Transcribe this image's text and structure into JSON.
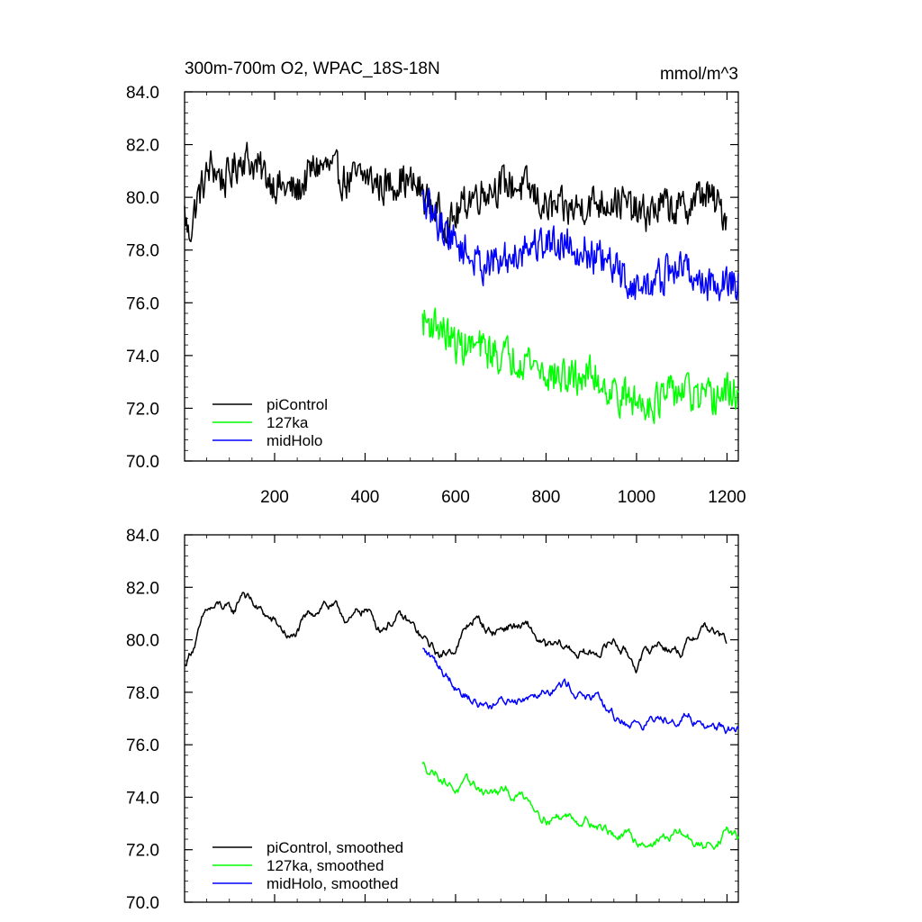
{
  "chart_data": [
    {
      "type": "line",
      "title": "300m-700m O2, WPAC_18S-18N",
      "units": "mmol/m^3",
      "xlim": [
        1,
        1225
      ],
      "ylim": [
        70,
        84
      ],
      "x_ticks": [
        200,
        400,
        600,
        800,
        1000,
        1200
      ],
      "x_tick_labels": [
        "200",
        "400",
        "600",
        "800",
        "1000",
        "1200"
      ],
      "y_ticks": [
        70,
        72,
        74,
        76,
        78,
        80,
        82,
        84
      ],
      "y_tick_labels": [
        "70.0",
        "72.0",
        "74.0",
        "76.0",
        "78.0",
        "80.0",
        "82.0",
        "84.0"
      ],
      "legend_position": "bottom-left",
      "series": [
        {
          "name": "piControl",
          "color": "#000000",
          "x_start": 1,
          "x_end": 1200,
          "anchors": [
            [
              1,
              79.4
            ],
            [
              10,
              78.5
            ],
            [
              30,
              80.0
            ],
            [
              60,
              81.2
            ],
            [
              90,
              80.6
            ],
            [
              130,
              81.6
            ],
            [
              170,
              81.0
            ],
            [
              210,
              80.4
            ],
            [
              250,
              80.2
            ],
            [
              290,
              81.2
            ],
            [
              320,
              81.1
            ],
            [
              360,
              80.6
            ],
            [
              400,
              80.8
            ],
            [
              440,
              80.4
            ],
            [
              480,
              80.7
            ],
            [
              520,
              80.3
            ],
            [
              560,
              79.4
            ],
            [
              590,
              79.0
            ],
            [
              630,
              80.0
            ],
            [
              680,
              80.4
            ],
            [
              720,
              80.5
            ],
            [
              760,
              80.3
            ],
            [
              800,
              79.6
            ],
            [
              850,
              79.5
            ],
            [
              900,
              79.8
            ],
            [
              960,
              79.9
            ],
            [
              1010,
              79.3
            ],
            [
              1060,
              79.7
            ],
            [
              1100,
              79.5
            ],
            [
              1150,
              80.2
            ],
            [
              1200,
              79.3
            ]
          ],
          "noise": 0.85
        },
        {
          "name": "127ka",
          "color": "#00ff00",
          "x_start": 527,
          "x_end": 1225,
          "anchors": [
            [
              527,
              75.3
            ],
            [
              560,
              75.2
            ],
            [
              600,
              74.4
            ],
            [
              650,
              74.3
            ],
            [
              700,
              74.0
            ],
            [
              760,
              73.9
            ],
            [
              800,
              73.3
            ],
            [
              850,
              73.1
            ],
            [
              900,
              73.3
            ],
            [
              950,
              72.6
            ],
            [
              1000,
              72.2
            ],
            [
              1050,
              72.3
            ],
            [
              1100,
              72.7
            ],
            [
              1150,
              72.2
            ],
            [
              1200,
              72.6
            ],
            [
              1225,
              72.6
            ]
          ],
          "noise": 0.85
        },
        {
          "name": "midHolo",
          "color": "#0000ff",
          "x_start": 527,
          "x_end": 1225,
          "anchors": [
            [
              527,
              79.8
            ],
            [
              560,
              79.1
            ],
            [
              600,
              78.3
            ],
            [
              650,
              77.5
            ],
            [
              700,
              77.5
            ],
            [
              760,
              78.2
            ],
            [
              800,
              78.3
            ],
            [
              850,
              78.3
            ],
            [
              900,
              77.8
            ],
            [
              950,
              77.3
            ],
            [
              1000,
              76.5
            ],
            [
              1050,
              76.9
            ],
            [
              1100,
              77.4
            ],
            [
              1150,
              76.7
            ],
            [
              1200,
              76.8
            ],
            [
              1225,
              76.8
            ]
          ],
          "noise": 0.85
        }
      ],
      "legend_entries": [
        "piControl",
        "127ka",
        "midHolo"
      ]
    },
    {
      "type": "line",
      "title": "",
      "xlim": [
        1,
        1225
      ],
      "ylim": [
        70,
        84
      ],
      "x_ticks": [
        200,
        400,
        600,
        800,
        1000,
        1200
      ],
      "y_ticks": [
        70,
        72,
        74,
        76,
        78,
        80,
        82,
        84
      ],
      "y_tick_labels": [
        "70.0",
        "72.0",
        "74.0",
        "76.0",
        "78.0",
        "80.0",
        "82.0",
        "84.0"
      ],
      "legend_position": "bottom-left",
      "series": [
        {
          "name": "piControl, smoothed",
          "color": "#000000",
          "x_start": 1,
          "x_end": 1200,
          "anchors": [
            [
              1,
              79.0
            ],
            [
              20,
              79.8
            ],
            [
              50,
              81.0
            ],
            [
              80,
              81.2
            ],
            [
              110,
              80.9
            ],
            [
              130,
              81.9
            ],
            [
              160,
              81.2
            ],
            [
              200,
              80.6
            ],
            [
              240,
              80.0
            ],
            [
              280,
              80.9
            ],
            [
              310,
              81.5
            ],
            [
              340,
              81.0
            ],
            [
              370,
              80.7
            ],
            [
              400,
              81.2
            ],
            [
              430,
              80.5
            ],
            [
              470,
              80.9
            ],
            [
              500,
              80.5
            ],
            [
              530,
              79.9
            ],
            [
              570,
              79.3
            ],
            [
              600,
              79.8
            ],
            [
              640,
              80.8
            ],
            [
              680,
              80.3
            ],
            [
              720,
              80.6
            ],
            [
              760,
              80.4
            ],
            [
              800,
              79.6
            ],
            [
              850,
              79.6
            ],
            [
              900,
              79.4
            ],
            [
              950,
              80.0
            ],
            [
              1000,
              79.1
            ],
            [
              1050,
              79.9
            ],
            [
              1100,
              79.6
            ],
            [
              1150,
              80.6
            ],
            [
              1200,
              79.8
            ]
          ],
          "noise": 0.35
        },
        {
          "name": "127ka, smoothed",
          "color": "#00ff00",
          "x_start": 527,
          "x_end": 1225,
          "anchors": [
            [
              527,
              75.2
            ],
            [
              560,
              75.0
            ],
            [
              600,
              74.4
            ],
            [
              650,
              74.3
            ],
            [
              700,
              74.1
            ],
            [
              760,
              74.0
            ],
            [
              800,
              73.4
            ],
            [
              850,
              73.3
            ],
            [
              900,
              73.2
            ],
            [
              950,
              72.6
            ],
            [
              1000,
              72.3
            ],
            [
              1050,
              72.4
            ],
            [
              1100,
              72.6
            ],
            [
              1150,
              72.0
            ],
            [
              1200,
              72.8
            ],
            [
              1225,
              72.4
            ]
          ],
          "noise": 0.35
        },
        {
          "name": "midHolo, smoothed",
          "color": "#0000ff",
          "x_start": 527,
          "x_end": 1225,
          "anchors": [
            [
              527,
              79.6
            ],
            [
              560,
              79.0
            ],
            [
              600,
              78.4
            ],
            [
              650,
              77.6
            ],
            [
              700,
              77.6
            ],
            [
              760,
              78.0
            ],
            [
              800,
              78.4
            ],
            [
              850,
              78.3
            ],
            [
              900,
              77.8
            ],
            [
              950,
              77.0
            ],
            [
              1000,
              76.8
            ],
            [
              1050,
              77.0
            ],
            [
              1100,
              77.3
            ],
            [
              1150,
              76.8
            ],
            [
              1200,
              76.7
            ],
            [
              1225,
              76.5
            ]
          ],
          "noise": 0.35
        }
      ],
      "legend_entries": [
        "piControl, smoothed",
        "127ka, smoothed",
        "midHolo, smoothed"
      ]
    }
  ]
}
